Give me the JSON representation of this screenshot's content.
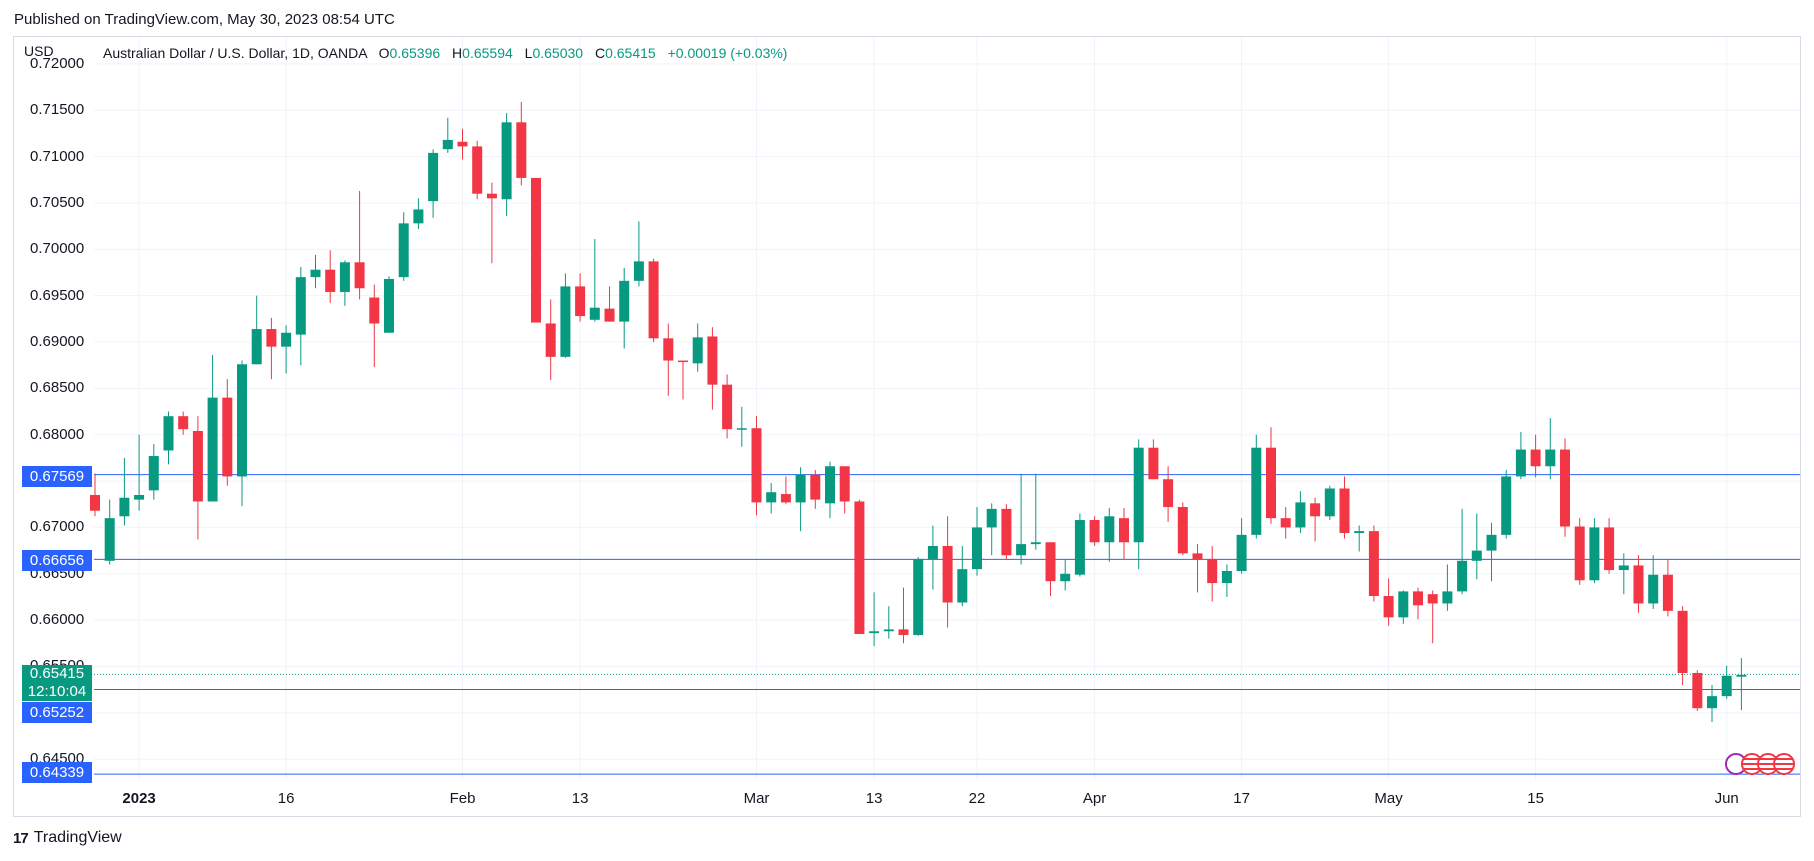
{
  "header": {
    "published": "Published on TradingView.com, May 30, 2023 08:54 UTC"
  },
  "legend": {
    "currency": "USD",
    "symbol": "Australian Dollar / U.S. Dollar, 1D, OANDA",
    "o_label": "O",
    "o_value": "0.65396",
    "h_label": "H",
    "h_value": "0.65594",
    "l_label": "L",
    "l_value": "0.65030",
    "c_label": "C",
    "c_value": "0.65415",
    "change": "+0.00019 (+0.03%)"
  },
  "price_tags": {
    "level_1": "0.67569",
    "level_2": "0.66656",
    "level_3": "0.65252",
    "level_4": "0.64339",
    "last_price": "0.65415",
    "countdown": "12:10:04"
  },
  "footer": {
    "brand": "TradingView",
    "logo_mark": "17"
  },
  "colors": {
    "up": "#089981",
    "down": "#f23645",
    "level_line": "#2962ff",
    "grid": "#f0f3fa",
    "text": "#131722"
  },
  "chart_data": {
    "type": "candlestick",
    "title": "Australian Dollar / U.S. Dollar, 1D, OANDA",
    "ylabel": "USD",
    "ylim": [
      0.642,
      0.7215
    ],
    "y_ticks": [
      "0.64500",
      "0.65000",
      "0.65500",
      "0.66000",
      "0.66500",
      "0.67000",
      "0.67500",
      "0.68000",
      "0.68500",
      "0.69000",
      "0.69500",
      "0.70000",
      "0.70500",
      "0.71000",
      "0.71500",
      "0.72000"
    ],
    "x_ticks": [
      {
        "label": "2023",
        "date": "2023-01-02",
        "bold": true
      },
      {
        "label": "16",
        "date": "2023-01-16"
      },
      {
        "label": "Feb",
        "date": "2023-02-01"
      },
      {
        "label": "13",
        "date": "2023-02-13"
      },
      {
        "label": "Mar",
        "date": "2023-03-01"
      },
      {
        "label": "13",
        "date": "2023-03-13"
      },
      {
        "label": "22",
        "date": "2023-03-22"
      },
      {
        "label": "Apr",
        "date": "2023-04-03"
      },
      {
        "label": "17",
        "date": "2023-04-17"
      },
      {
        "label": "May",
        "date": "2023-05-01"
      },
      {
        "label": "15",
        "date": "2023-05-15"
      },
      {
        "label": "Jun",
        "date": "2023-06-01"
      }
    ],
    "horizontal_levels": [
      0.67569,
      0.66656,
      0.65252,
      0.64339
    ],
    "last_price": 0.65415,
    "candles": [
      {
        "date": "2022-12-28",
        "o": 0.6735,
        "h": 0.6758,
        "l": 0.6712,
        "c": 0.6718
      },
      {
        "date": "2022-12-29",
        "o": 0.6664,
        "h": 0.673,
        "l": 0.666,
        "c": 0.671
      },
      {
        "date": "2022-12-30",
        "o": 0.6712,
        "h": 0.6775,
        "l": 0.6702,
        "c": 0.6732
      },
      {
        "date": "2023-01-02",
        "o": 0.673,
        "h": 0.68,
        "l": 0.6718,
        "c": 0.6735
      },
      {
        "date": "2023-01-03",
        "o": 0.674,
        "h": 0.679,
        "l": 0.673,
        "c": 0.6777
      },
      {
        "date": "2023-01-04",
        "o": 0.6783,
        "h": 0.6825,
        "l": 0.6768,
        "c": 0.682
      },
      {
        "date": "2023-01-05",
        "o": 0.682,
        "h": 0.6825,
        "l": 0.68,
        "c": 0.6806
      },
      {
        "date": "2023-01-06",
        "o": 0.6804,
        "h": 0.682,
        "l": 0.6687,
        "c": 0.6728
      },
      {
        "date": "2023-01-09",
        "o": 0.6728,
        "h": 0.6886,
        "l": 0.6728,
        "c": 0.684
      },
      {
        "date": "2023-01-10",
        "o": 0.684,
        "h": 0.686,
        "l": 0.6745,
        "c": 0.6755
      },
      {
        "date": "2023-01-11",
        "o": 0.6755,
        "h": 0.688,
        "l": 0.6723,
        "c": 0.6876
      },
      {
        "date": "2023-01-12",
        "o": 0.6876,
        "h": 0.695,
        "l": 0.6876,
        "c": 0.6914
      },
      {
        "date": "2023-01-13",
        "o": 0.6914,
        "h": 0.6926,
        "l": 0.686,
        "c": 0.6895
      },
      {
        "date": "2023-01-16",
        "o": 0.6895,
        "h": 0.6918,
        "l": 0.6866,
        "c": 0.691
      },
      {
        "date": "2023-01-17",
        "o": 0.6908,
        "h": 0.6981,
        "l": 0.6875,
        "c": 0.697
      },
      {
        "date": "2023-01-18",
        "o": 0.697,
        "h": 0.6994,
        "l": 0.6958,
        "c": 0.6978
      },
      {
        "date": "2023-01-19",
        "o": 0.6978,
        "h": 0.6999,
        "l": 0.6942,
        "c": 0.6954
      },
      {
        "date": "2023-01-20",
        "o": 0.6954,
        "h": 0.6988,
        "l": 0.6939,
        "c": 0.6986
      },
      {
        "date": "2023-01-23",
        "o": 0.6986,
        "h": 0.7063,
        "l": 0.6946,
        "c": 0.6958
      },
      {
        "date": "2023-01-24",
        "o": 0.6948,
        "h": 0.6962,
        "l": 0.6873,
        "c": 0.692
      },
      {
        "date": "2023-01-25",
        "o": 0.691,
        "h": 0.6971,
        "l": 0.691,
        "c": 0.6968
      },
      {
        "date": "2023-01-26",
        "o": 0.697,
        "h": 0.704,
        "l": 0.6966,
        "c": 0.7028
      },
      {
        "date": "2023-01-27",
        "o": 0.7028,
        "h": 0.7055,
        "l": 0.7022,
        "c": 0.7043
      },
      {
        "date": "2023-01-30",
        "o": 0.7052,
        "h": 0.7108,
        "l": 0.7034,
        "c": 0.7104
      },
      {
        "date": "2023-01-31",
        "o": 0.7108,
        "h": 0.7142,
        "l": 0.7104,
        "c": 0.7118
      },
      {
        "date": "2023-02-01",
        "o": 0.7116,
        "h": 0.713,
        "l": 0.7097,
        "c": 0.7111
      },
      {
        "date": "2023-02-02",
        "o": 0.7111,
        "h": 0.7117,
        "l": 0.7054,
        "c": 0.706
      },
      {
        "date": "2023-02-03",
        "o": 0.706,
        "h": 0.7072,
        "l": 0.6985,
        "c": 0.7055
      },
      {
        "date": "2023-02-06",
        "o": 0.7054,
        "h": 0.7147,
        "l": 0.7036,
        "c": 0.7137
      },
      {
        "date": "2023-02-07",
        "o": 0.7137,
        "h": 0.7159,
        "l": 0.7069,
        "c": 0.7077
      },
      {
        "date": "2023-02-08",
        "o": 0.7077,
        "h": 0.7077,
        "l": 0.6921,
        "c": 0.6921
      },
      {
        "date": "2023-02-09",
        "o": 0.692,
        "h": 0.6946,
        "l": 0.6859,
        "c": 0.6884
      },
      {
        "date": "2023-02-10",
        "o": 0.6884,
        "h": 0.6974,
        "l": 0.6883,
        "c": 0.696
      },
      {
        "date": "2023-02-13",
        "o": 0.696,
        "h": 0.6974,
        "l": 0.6922,
        "c": 0.6928
      },
      {
        "date": "2023-02-14",
        "o": 0.6924,
        "h": 0.7011,
        "l": 0.6922,
        "c": 0.6937
      },
      {
        "date": "2023-02-15",
        "o": 0.6936,
        "h": 0.696,
        "l": 0.6922,
        "c": 0.6922
      },
      {
        "date": "2023-02-16",
        "o": 0.6922,
        "h": 0.698,
        "l": 0.6893,
        "c": 0.6966
      },
      {
        "date": "2023-02-17",
        "o": 0.6966,
        "h": 0.703,
        "l": 0.696,
        "c": 0.6987
      },
      {
        "date": "2023-02-20",
        "o": 0.6987,
        "h": 0.699,
        "l": 0.69,
        "c": 0.6904
      },
      {
        "date": "2023-02-21",
        "o": 0.6904,
        "h": 0.692,
        "l": 0.6842,
        "c": 0.688
      },
      {
        "date": "2023-02-22",
        "o": 0.688,
        "h": 0.688,
        "l": 0.6838,
        "c": 0.6879
      },
      {
        "date": "2023-02-23",
        "o": 0.6877,
        "h": 0.692,
        "l": 0.6868,
        "c": 0.6905
      },
      {
        "date": "2023-02-24",
        "o": 0.6906,
        "h": 0.6916,
        "l": 0.6827,
        "c": 0.6854
      },
      {
        "date": "2023-02-27",
        "o": 0.6854,
        "h": 0.6865,
        "l": 0.6796,
        "c": 0.6806
      },
      {
        "date": "2023-02-28",
        "o": 0.6806,
        "h": 0.683,
        "l": 0.6787,
        "c": 0.6807
      },
      {
        "date": "2023-03-01",
        "o": 0.6807,
        "h": 0.682,
        "l": 0.6713,
        "c": 0.6727
      },
      {
        "date": "2023-03-02",
        "o": 0.6727,
        "h": 0.6748,
        "l": 0.6715,
        "c": 0.6738
      },
      {
        "date": "2023-03-03",
        "o": 0.6736,
        "h": 0.6755,
        "l": 0.6725,
        "c": 0.6727
      },
      {
        "date": "2023-03-06",
        "o": 0.6727,
        "h": 0.6765,
        "l": 0.6696,
        "c": 0.6757
      },
      {
        "date": "2023-03-07",
        "o": 0.6757,
        "h": 0.6762,
        "l": 0.672,
        "c": 0.673
      },
      {
        "date": "2023-03-08",
        "o": 0.6726,
        "h": 0.6771,
        "l": 0.671,
        "c": 0.6766
      },
      {
        "date": "2023-03-09",
        "o": 0.6766,
        "h": 0.6766,
        "l": 0.6715,
        "c": 0.6728
      },
      {
        "date": "2023-03-10",
        "o": 0.6728,
        "h": 0.673,
        "l": 0.6585,
        "c": 0.6585
      },
      {
        "date": "2023-03-13",
        "o": 0.6586,
        "h": 0.663,
        "l": 0.6572,
        "c": 0.6588
      },
      {
        "date": "2023-03-14",
        "o": 0.6588,
        "h": 0.6615,
        "l": 0.658,
        "c": 0.659
      },
      {
        "date": "2023-03-15",
        "o": 0.659,
        "h": 0.6635,
        "l": 0.6575,
        "c": 0.6584
      },
      {
        "date": "2023-03-16",
        "o": 0.6584,
        "h": 0.6668,
        "l": 0.6583,
        "c": 0.6666
      },
      {
        "date": "2023-03-17",
        "o": 0.6666,
        "h": 0.6702,
        "l": 0.6633,
        "c": 0.668
      },
      {
        "date": "2023-03-20",
        "o": 0.668,
        "h": 0.6712,
        "l": 0.6592,
        "c": 0.6619
      },
      {
        "date": "2023-03-21",
        "o": 0.6619,
        "h": 0.668,
        "l": 0.6615,
        "c": 0.6655
      },
      {
        "date": "2023-03-22",
        "o": 0.6655,
        "h": 0.6722,
        "l": 0.6648,
        "c": 0.67
      },
      {
        "date": "2023-03-23",
        "o": 0.67,
        "h": 0.6726,
        "l": 0.667,
        "c": 0.672
      },
      {
        "date": "2023-03-24",
        "o": 0.672,
        "h": 0.6725,
        "l": 0.6665,
        "c": 0.667
      },
      {
        "date": "2023-03-27",
        "o": 0.667,
        "h": 0.6758,
        "l": 0.666,
        "c": 0.6682
      },
      {
        "date": "2023-03-28",
        "o": 0.6682,
        "h": 0.6758,
        "l": 0.6676,
        "c": 0.6684
      },
      {
        "date": "2023-03-29",
        "o": 0.6684,
        "h": 0.6684,
        "l": 0.6626,
        "c": 0.6642
      },
      {
        "date": "2023-03-30",
        "o": 0.6642,
        "h": 0.6665,
        "l": 0.6632,
        "c": 0.665
      },
      {
        "date": "2023-03-31",
        "o": 0.6649,
        "h": 0.6715,
        "l": 0.6647,
        "c": 0.6708
      },
      {
        "date": "2023-04-03",
        "o": 0.6708,
        "h": 0.6712,
        "l": 0.668,
        "c": 0.6684
      },
      {
        "date": "2023-04-04",
        "o": 0.6684,
        "h": 0.6721,
        "l": 0.6663,
        "c": 0.6712
      },
      {
        "date": "2023-04-05",
        "o": 0.671,
        "h": 0.6721,
        "l": 0.6665,
        "c": 0.6684
      },
      {
        "date": "2023-04-06",
        "o": 0.6684,
        "h": 0.6795,
        "l": 0.6655,
        "c": 0.6786
      },
      {
        "date": "2023-04-07",
        "o": 0.6786,
        "h": 0.6795,
        "l": 0.6756,
        "c": 0.6752
      },
      {
        "date": "2023-04-10",
        "o": 0.6752,
        "h": 0.6766,
        "l": 0.6706,
        "c": 0.6722
      },
      {
        "date": "2023-04-11",
        "o": 0.6722,
        "h": 0.6727,
        "l": 0.667,
        "c": 0.6672
      },
      {
        "date": "2023-04-12",
        "o": 0.6672,
        "h": 0.6682,
        "l": 0.663,
        "c": 0.6666
      },
      {
        "date": "2023-04-13",
        "o": 0.6666,
        "h": 0.668,
        "l": 0.662,
        "c": 0.664
      },
      {
        "date": "2023-04-14",
        "o": 0.664,
        "h": 0.666,
        "l": 0.6625,
        "c": 0.6653
      },
      {
        "date": "2023-04-17",
        "o": 0.6653,
        "h": 0.671,
        "l": 0.665,
        "c": 0.6692
      },
      {
        "date": "2023-04-18",
        "o": 0.6692,
        "h": 0.68,
        "l": 0.6688,
        "c": 0.6786
      },
      {
        "date": "2023-04-19",
        "o": 0.6786,
        "h": 0.6808,
        "l": 0.6704,
        "c": 0.671
      },
      {
        "date": "2023-04-20",
        "o": 0.671,
        "h": 0.6722,
        "l": 0.6688,
        "c": 0.67
      },
      {
        "date": "2023-04-21",
        "o": 0.67,
        "h": 0.6739,
        "l": 0.6694,
        "c": 0.6727
      },
      {
        "date": "2023-04-24",
        "o": 0.6726,
        "h": 0.6732,
        "l": 0.6685,
        "c": 0.6712
      },
      {
        "date": "2023-04-25",
        "o": 0.6712,
        "h": 0.6745,
        "l": 0.6708,
        "c": 0.6742
      },
      {
        "date": "2023-04-26",
        "o": 0.6742,
        "h": 0.6755,
        "l": 0.6688,
        "c": 0.6694
      },
      {
        "date": "2023-04-27",
        "o": 0.6694,
        "h": 0.6702,
        "l": 0.6674,
        "c": 0.6696
      },
      {
        "date": "2023-04-28",
        "o": 0.6696,
        "h": 0.6702,
        "l": 0.662,
        "c": 0.6626
      },
      {
        "date": "2023-05-01",
        "o": 0.6626,
        "h": 0.6645,
        "l": 0.6594,
        "c": 0.6603
      },
      {
        "date": "2023-05-02",
        "o": 0.6603,
        "h": 0.6632,
        "l": 0.6596,
        "c": 0.6631
      },
      {
        "date": "2023-05-03",
        "o": 0.6631,
        "h": 0.6635,
        "l": 0.6601,
        "c": 0.6616
      },
      {
        "date": "2023-05-04",
        "o": 0.6628,
        "h": 0.6632,
        "l": 0.6575,
        "c": 0.6618
      },
      {
        "date": "2023-05-05",
        "o": 0.6618,
        "h": 0.666,
        "l": 0.661,
        "c": 0.6631
      },
      {
        "date": "2023-05-08",
        "o": 0.6631,
        "h": 0.672,
        "l": 0.6628,
        "c": 0.6664
      },
      {
        "date": "2023-05-09",
        "o": 0.6664,
        "h": 0.6715,
        "l": 0.6644,
        "c": 0.6675
      },
      {
        "date": "2023-05-10",
        "o": 0.6675,
        "h": 0.6705,
        "l": 0.6642,
        "c": 0.6692
      },
      {
        "date": "2023-05-11",
        "o": 0.6692,
        "h": 0.6762,
        "l": 0.6688,
        "c": 0.6755
      },
      {
        "date": "2023-05-12",
        "o": 0.6755,
        "h": 0.6803,
        "l": 0.6752,
        "c": 0.6784
      },
      {
        "date": "2023-05-15",
        "o": 0.6784,
        "h": 0.68,
        "l": 0.6754,
        "c": 0.6766
      },
      {
        "date": "2023-05-16",
        "o": 0.6766,
        "h": 0.6818,
        "l": 0.6752,
        "c": 0.6784
      },
      {
        "date": "2023-05-17",
        "o": 0.6784,
        "h": 0.6796,
        "l": 0.669,
        "c": 0.6701
      },
      {
        "date": "2023-05-18",
        "o": 0.6701,
        "h": 0.671,
        "l": 0.6638,
        "c": 0.6643
      },
      {
        "date": "2023-05-19",
        "o": 0.6643,
        "h": 0.671,
        "l": 0.664,
        "c": 0.67
      },
      {
        "date": "2023-05-22",
        "o": 0.67,
        "h": 0.671,
        "l": 0.665,
        "c": 0.6654
      },
      {
        "date": "2023-05-23",
        "o": 0.6654,
        "h": 0.6672,
        "l": 0.6628,
        "c": 0.6659
      },
      {
        "date": "2023-05-24",
        "o": 0.6659,
        "h": 0.667,
        "l": 0.6608,
        "c": 0.6618
      },
      {
        "date": "2023-05-25",
        "o": 0.6618,
        "h": 0.667,
        "l": 0.6612,
        "c": 0.6649
      },
      {
        "date": "2023-05-26",
        "o": 0.6649,
        "h": 0.6665,
        "l": 0.6604,
        "c": 0.661
      },
      {
        "date": "2023-05-29",
        "o": 0.661,
        "h": 0.6615,
        "l": 0.653,
        "c": 0.6543
      },
      {
        "date": "2023-05-30",
        "o": 0.6543,
        "h": 0.6546,
        "l": 0.6502,
        "c": 0.6505
      },
      {
        "date": "2023-05-31",
        "o": 0.6505,
        "h": 0.653,
        "l": 0.649,
        "c": 0.6518
      },
      {
        "date": "2023-06-01",
        "o": 0.6518,
        "h": 0.6551,
        "l": 0.6515,
        "c": 0.654
      },
      {
        "date": "2023-06-02",
        "o": 0.6539,
        "h": 0.6559,
        "l": 0.6503,
        "c": 0.6541
      }
    ]
  }
}
